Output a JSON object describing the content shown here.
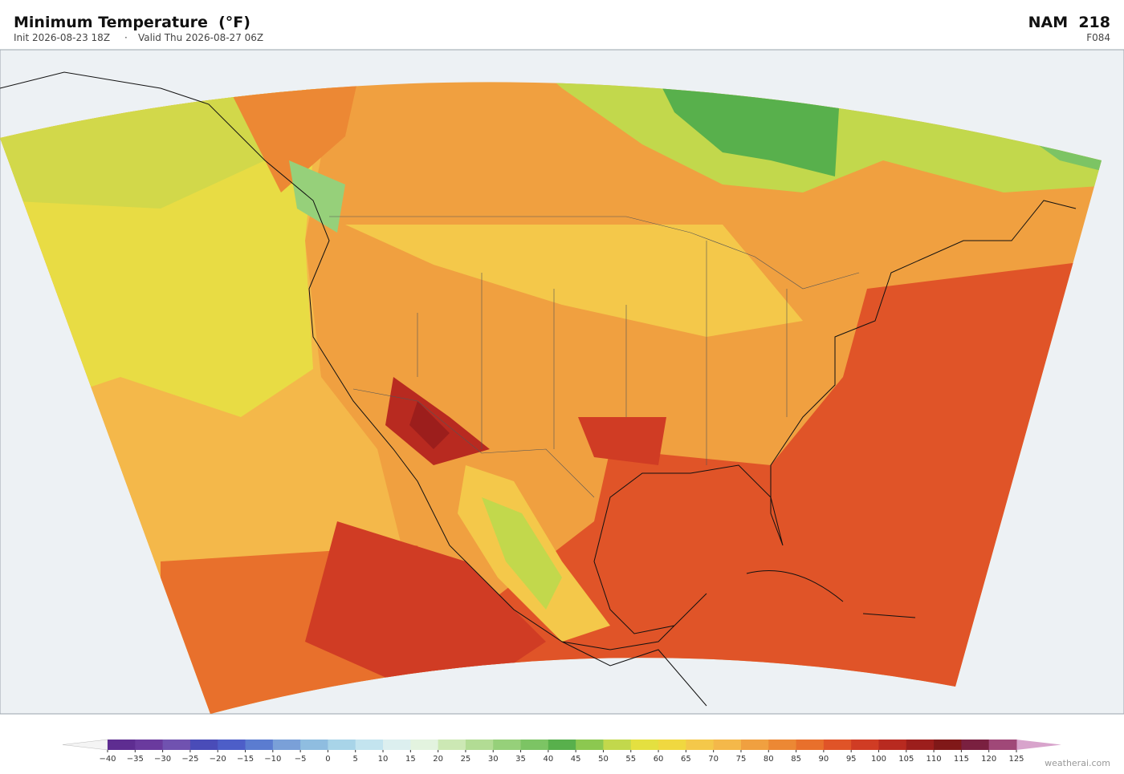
{
  "header": {
    "title": "Minimum Temperature  (°F)",
    "init": "Init 2026-08-23 18Z",
    "separator": "·",
    "valid": "Valid Thu 2026-08-27 06Z",
    "model": "NAM  218",
    "forecast": "F084"
  },
  "colorbar": {
    "ticks": [
      {
        "value": -40,
        "label": "−40"
      },
      {
        "value": -35,
        "label": "−35"
      },
      {
        "value": -30,
        "label": "−30"
      },
      {
        "value": -25,
        "label": "−25"
      },
      {
        "value": -20,
        "label": "−20"
      },
      {
        "value": -15,
        "label": "−15"
      },
      {
        "value": -10,
        "label": "−10"
      },
      {
        "value": -5,
        "label": "−5"
      },
      0,
      5,
      10,
      15,
      20,
      25,
      30,
      35,
      40,
      45,
      50,
      55,
      60,
      65,
      70,
      75,
      80,
      85,
      90,
      95,
      100,
      105,
      110,
      115,
      120,
      125
    ],
    "colors": [
      "#5e2d91",
      "#6a3a9e",
      "#7052b0",
      "#4a4cb8",
      "#4d5ec8",
      "#5b7cd0",
      "#7aa0d8",
      "#8fbde0",
      "#a8d4e8",
      "#c3e4ef",
      "#dcefef",
      "#e3f3df",
      "#cce8b4",
      "#b2dc94",
      "#96d07a",
      "#7cc464",
      "#58b04c",
      "#8cc850",
      "#c2d84c",
      "#e4e040",
      "#f0d840",
      "#f4c84a",
      "#f4b84a",
      "#f0a040",
      "#ec8834",
      "#e8702c",
      "#e05428",
      "#d03c24",
      "#b82a20",
      "#9c1e1c",
      "#801818",
      "#7a2040",
      "#a04878"
    ],
    "extend_colors": [
      "#f4f4f4",
      "#d8a4cc"
    ]
  },
  "credit": "weatherai.com"
}
